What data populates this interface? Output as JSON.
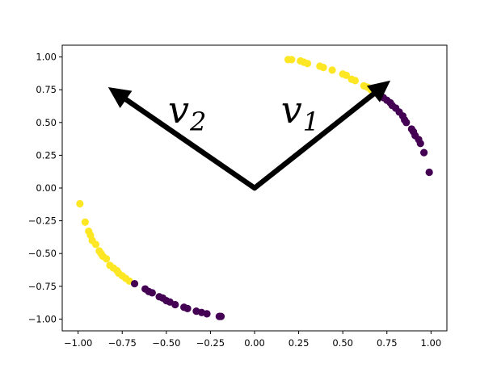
{
  "chart_data": {
    "type": "scatter",
    "title": "",
    "xlabel": "",
    "ylabel": "",
    "xlim": [
      -1.09,
      1.09
    ],
    "ylim": [
      -1.09,
      1.09
    ],
    "x_ticks": [
      -1.0,
      -0.75,
      -0.5,
      -0.25,
      0.0,
      0.25,
      0.5,
      0.75,
      1.0
    ],
    "y_ticks": [
      -1.0,
      -0.75,
      -0.5,
      -0.25,
      0.0,
      0.25,
      0.5,
      0.75,
      1.0
    ],
    "x_tick_labels": [
      "−1.00",
      "−0.75",
      "−0.50",
      "−0.25",
      "0.00",
      "0.25",
      "0.50",
      "0.75",
      "1.00"
    ],
    "y_tick_labels": [
      "−1.00",
      "−0.75",
      "−0.50",
      "−0.25",
      "0.00",
      "0.25",
      "0.50",
      "0.75",
      "1.00"
    ],
    "grid": false,
    "colors": {
      "class_0": "#440154",
      "class_1": "#fde725",
      "arrow": "#000000"
    },
    "series": [
      {
        "color_key": "class_1",
        "points": [
          [
            0.19,
            0.98
          ],
          [
            0.21,
            0.98
          ],
          [
            0.26,
            0.97
          ],
          [
            0.28,
            0.96
          ],
          [
            0.3,
            0.95
          ],
          [
            0.37,
            0.93
          ],
          [
            0.39,
            0.92
          ],
          [
            0.44,
            0.9
          ],
          [
            0.5,
            0.87
          ],
          [
            0.52,
            0.86
          ],
          [
            0.55,
            0.83
          ],
          [
            0.57,
            0.82
          ],
          [
            0.62,
            0.78
          ],
          [
            0.64,
            0.77
          ],
          [
            0.66,
            0.75
          ],
          [
            0.69,
            0.73
          ],
          [
            -0.99,
            -0.12
          ],
          [
            -0.96,
            -0.26
          ],
          [
            -0.94,
            -0.33
          ],
          [
            -0.93,
            -0.36
          ],
          [
            -0.92,
            -0.4
          ],
          [
            -0.9,
            -0.43
          ],
          [
            -0.88,
            -0.48
          ],
          [
            -0.87,
            -0.5
          ],
          [
            -0.86,
            -0.52
          ],
          [
            -0.84,
            -0.54
          ],
          [
            -0.82,
            -0.59
          ],
          [
            -0.8,
            -0.61
          ],
          [
            -0.78,
            -0.63
          ],
          [
            -0.77,
            -0.65
          ],
          [
            -0.75,
            -0.67
          ],
          [
            -0.73,
            -0.69
          ],
          [
            -0.71,
            -0.71
          ]
        ]
      },
      {
        "color_key": "class_0",
        "points": [
          [
            0.7,
            0.72
          ],
          [
            0.73,
            0.69
          ],
          [
            0.75,
            0.67
          ],
          [
            0.77,
            0.65
          ],
          [
            0.78,
            0.63
          ],
          [
            0.8,
            0.61
          ],
          [
            0.82,
            0.58
          ],
          [
            0.84,
            0.55
          ],
          [
            0.85,
            0.52
          ],
          [
            0.86,
            0.5
          ],
          [
            0.89,
            0.45
          ],
          [
            0.9,
            0.43
          ],
          [
            0.91,
            0.4
          ],
          [
            0.93,
            0.37
          ],
          [
            0.94,
            0.34
          ],
          [
            0.96,
            0.27
          ],
          [
            0.99,
            0.12
          ],
          [
            -0.68,
            -0.73
          ],
          [
            -0.62,
            -0.77
          ],
          [
            -0.6,
            -0.79
          ],
          [
            -0.58,
            -0.8
          ],
          [
            -0.54,
            -0.83
          ],
          [
            -0.52,
            -0.84
          ],
          [
            -0.5,
            -0.86
          ],
          [
            -0.48,
            -0.87
          ],
          [
            -0.45,
            -0.89
          ],
          [
            -0.4,
            -0.91
          ],
          [
            -0.38,
            -0.92
          ],
          [
            -0.33,
            -0.94
          ],
          [
            -0.3,
            -0.95
          ],
          [
            -0.27,
            -0.96
          ],
          [
            -0.2,
            -0.98
          ],
          [
            -0.19,
            -0.98
          ]
        ]
      }
    ],
    "vectors": [
      {
        "label": "v",
        "subscript": "1",
        "from": [
          0.0,
          0.0
        ],
        "to": [
          0.77,
          0.82
        ],
        "label_at": [
          0.15,
          0.5
        ]
      },
      {
        "label": "v",
        "subscript": "2",
        "from": [
          0.0,
          0.0
        ],
        "to": [
          -0.83,
          0.77
        ],
        "label_at": [
          -0.49,
          0.5
        ]
      }
    ]
  }
}
